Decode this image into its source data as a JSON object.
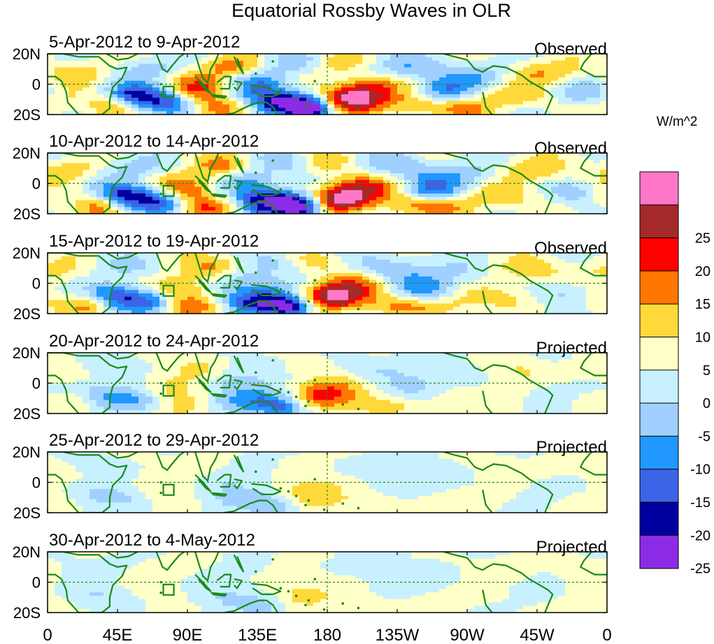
{
  "title": "Equatorial Rossby Waves in OLR",
  "units": "W/m^2",
  "colors": {
    "land_outline": "#1a8a1a",
    "reference_line": "#2a8a2a",
    "frame": "#000000"
  },
  "latitude_labels": [
    "20N",
    "0",
    "20S"
  ],
  "longitude_labels": [
    "0",
    "45E",
    "90E",
    "135E",
    "180",
    "135W",
    "90W",
    "45W",
    "0"
  ],
  "panels": [
    {
      "date_range": "5-Apr-2012 to 9-Apr-2012",
      "type": "Observed",
      "amplitude": 1.0,
      "phase": 0.0
    },
    {
      "date_range": "10-Apr-2012 to 14-Apr-2012",
      "type": "Observed",
      "amplitude": 1.0,
      "phase": 0.35
    },
    {
      "date_range": "15-Apr-2012 to 19-Apr-2012",
      "type": "Observed",
      "amplitude": 0.9,
      "phase": 0.7
    },
    {
      "date_range": "20-Apr-2012 to 24-Apr-2012",
      "type": "Projected",
      "amplitude": 0.55,
      "phase": 1.05
    },
    {
      "date_range": "25-Apr-2012 to 29-Apr-2012",
      "type": "Projected",
      "amplitude": 0.3,
      "phase": 1.4
    },
    {
      "date_range": "30-Apr-2012 to 4-May-2012",
      "type": "Projected",
      "amplitude": 0.22,
      "phase": 1.75
    }
  ],
  "colorbar": {
    "bins": [
      {
        "color": "#ff77c8"
      },
      {
        "color": "#a52a2a",
        "label": "25"
      },
      {
        "color": "#ff0000",
        "label": "20"
      },
      {
        "color": "#ff7700",
        "label": "15"
      },
      {
        "color": "#ffd93a",
        "label": "10"
      },
      {
        "color": "#ffffc8",
        "label": "5"
      },
      {
        "color": "#c8f0ff",
        "label": "0"
      },
      {
        "color": "#a0d0ff",
        "label": "-5"
      },
      {
        "color": "#2098ff",
        "label": "-10"
      },
      {
        "color": "#3c64e6",
        "label": "-15"
      },
      {
        "color": "#00009f",
        "label": "-20"
      },
      {
        "color": "#8c2be6",
        "label": "-25"
      }
    ]
  }
}
